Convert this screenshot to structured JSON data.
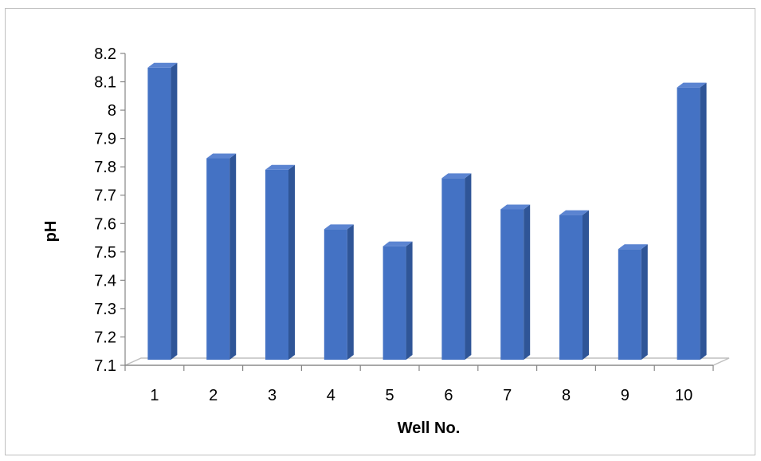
{
  "chart_data": {
    "type": "bar",
    "title": "",
    "xlabel": "Well No.",
    "ylabel": "pH",
    "categories": [
      "1",
      "2",
      "3",
      "4",
      "5",
      "6",
      "7",
      "8",
      "9",
      "10"
    ],
    "values": [
      8.15,
      7.83,
      7.79,
      7.58,
      7.52,
      7.76,
      7.65,
      7.63,
      7.51,
      8.08
    ],
    "ylim": [
      7.1,
      8.2
    ],
    "yticks": [
      "7.1",
      "7.2",
      "7.3",
      "7.4",
      "7.5",
      "7.6",
      "7.7",
      "7.8",
      "7.9",
      "8",
      "8.1",
      "8.2"
    ],
    "style": "3d-column",
    "grid": false,
    "legend": "none",
    "colors": {
      "bar_front": "#4472c4",
      "bar_side": "#2f5597",
      "bar_top": "#5b84d1",
      "axis": "#868686",
      "floor": "#bfbfbf"
    }
  }
}
